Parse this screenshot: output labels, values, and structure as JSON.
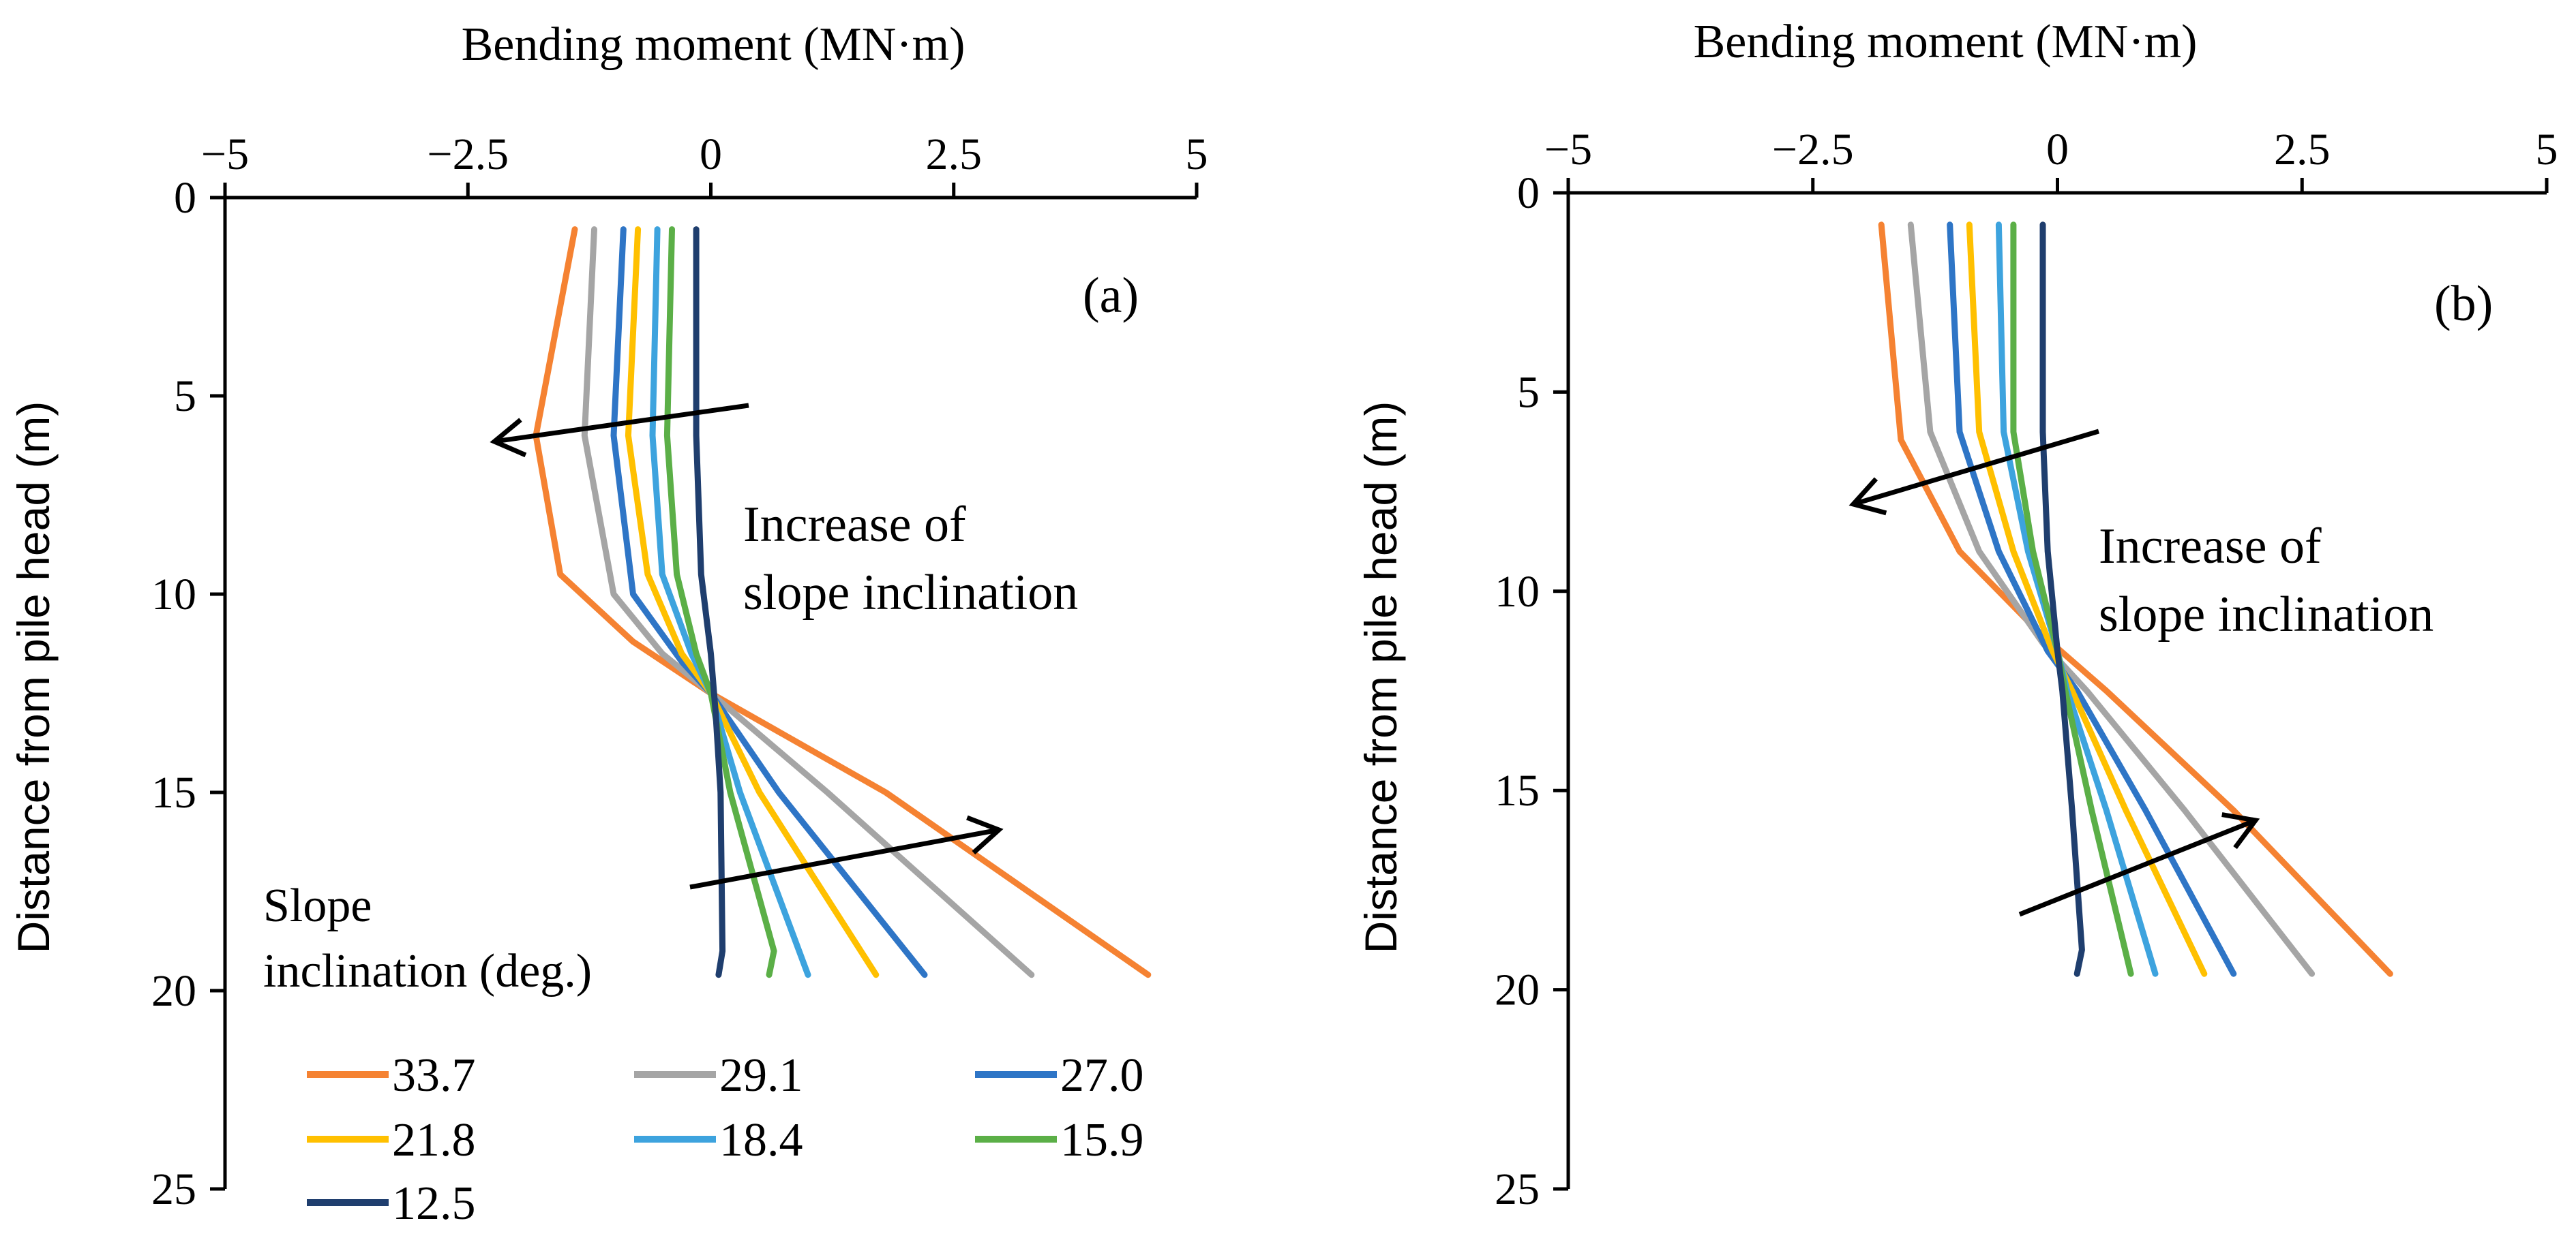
{
  "chart_data": [
    {
      "type": "line",
      "panel_label": "(a)",
      "title": "Bending moment (MN·m)",
      "xlabel": "Bending moment (MN·m)",
      "ylabel": "Distance from pile head (m)",
      "xlim": [
        -5,
        5
      ],
      "ylim": [
        0,
        25
      ],
      "y_inverted": true,
      "x_ticks": [
        "−5",
        "−2.5",
        "0",
        "2.5",
        "5"
      ],
      "x_tick_values": [
        -5,
        -2.5,
        0,
        2.5,
        5
      ],
      "y_ticks": [
        "0",
        "5",
        "10",
        "15",
        "20",
        "25"
      ],
      "y_tick_values": [
        0,
        5,
        10,
        15,
        20,
        25
      ],
      "annotation": "Increase of slope inclination",
      "legend_title": "Slope inclination (deg.)",
      "series": [
        {
          "name": "33.7",
          "color": "#F58232",
          "points": [
            [
              -1.4,
              0.8
            ],
            [
              -1.8,
              6.0
            ],
            [
              -1.55,
              9.5
            ],
            [
              -0.8,
              11.2
            ],
            [
              0,
              12.5
            ],
            [
              1.8,
              15.0
            ],
            [
              4.5,
              19.6
            ]
          ]
        },
        {
          "name": "29.1",
          "color": "#A5A5A5",
          "points": [
            [
              -1.2,
              0.8
            ],
            [
              -1.3,
              6.0
            ],
            [
              -1.0,
              10.0
            ],
            [
              -0.5,
              11.5
            ],
            [
              0,
              12.5
            ],
            [
              1.2,
              15.0
            ],
            [
              3.3,
              19.6
            ]
          ]
        },
        {
          "name": "27.0",
          "color": "#2E75C6",
          "points": [
            [
              -0.9,
              0.8
            ],
            [
              -1.0,
              6.0
            ],
            [
              -0.8,
              10.0
            ],
            [
              -0.3,
              11.7
            ],
            [
              0,
              12.5
            ],
            [
              0.7,
              15.0
            ],
            [
              2.2,
              19.6
            ]
          ]
        },
        {
          "name": "21.8",
          "color": "#FFC000",
          "points": [
            [
              -0.75,
              0.8
            ],
            [
              -0.85,
              6.0
            ],
            [
              -0.65,
              9.5
            ],
            [
              -0.3,
              11.5
            ],
            [
              0,
              12.5
            ],
            [
              0.5,
              15.0
            ],
            [
              1.7,
              19.6
            ]
          ]
        },
        {
          "name": "18.4",
          "color": "#3DA3DE",
          "points": [
            [
              -0.55,
              0.8
            ],
            [
              -0.6,
              6.0
            ],
            [
              -0.5,
              9.5
            ],
            [
              -0.2,
              11.5
            ],
            [
              0,
              12.5
            ],
            [
              0.3,
              15.0
            ],
            [
              1.0,
              19.6
            ]
          ]
        },
        {
          "name": "15.9",
          "color": "#5BAF47",
          "points": [
            [
              -0.4,
              0.8
            ],
            [
              -0.45,
              6.0
            ],
            [
              -0.35,
              9.5
            ],
            [
              -0.15,
              11.5
            ],
            [
              0,
              12.5
            ],
            [
              0.2,
              15.0
            ],
            [
              0.65,
              19.0
            ],
            [
              0.6,
              19.6
            ]
          ]
        },
        {
          "name": "12.5",
          "color": "#1F3E6E",
          "points": [
            [
              -0.15,
              0.8
            ],
            [
              -0.15,
              6.0
            ],
            [
              -0.1,
              9.5
            ],
            [
              0,
              11.5
            ],
            [
              0.05,
              13.0
            ],
            [
              0.1,
              15.0
            ],
            [
              0.12,
              19.0
            ],
            [
              0.08,
              19.6
            ]
          ]
        }
      ]
    },
    {
      "type": "line",
      "panel_label": "(b)",
      "title": "Bending moment (MN·m)",
      "xlabel": "Bending moment (MN·m)",
      "ylabel": "Distance from pile head (m)",
      "xlim": [
        -5,
        5
      ],
      "ylim": [
        0,
        25
      ],
      "y_inverted": true,
      "x_ticks": [
        "−5",
        "−2.5",
        "0",
        "2.5",
        "5"
      ],
      "x_tick_values": [
        -5,
        -2.5,
        0,
        2.5,
        5
      ],
      "y_ticks": [
        "0",
        "5",
        "10",
        "15",
        "20",
        "25"
      ],
      "y_tick_values": [
        0,
        5,
        10,
        15,
        20,
        25
      ],
      "annotation": "Increase of slope inclination",
      "series": [
        {
          "name": "33.7",
          "color": "#F58232",
          "points": [
            [
              -1.8,
              0.8
            ],
            [
              -1.6,
              6.2
            ],
            [
              -1.0,
              9.0
            ],
            [
              -0.2,
              11.0
            ],
            [
              0.5,
              12.5
            ],
            [
              1.8,
              15.5
            ],
            [
              3.4,
              19.6
            ]
          ]
        },
        {
          "name": "29.1",
          "color": "#A5A5A5",
          "points": [
            [
              -1.5,
              0.8
            ],
            [
              -1.3,
              6.0
            ],
            [
              -0.8,
              9.0
            ],
            [
              -0.15,
              11.3
            ],
            [
              0.3,
              12.5
            ],
            [
              1.3,
              15.5
            ],
            [
              2.6,
              19.6
            ]
          ]
        },
        {
          "name": "27.0",
          "color": "#2E75C6",
          "points": [
            [
              -1.1,
              0.8
            ],
            [
              -1.0,
              6.0
            ],
            [
              -0.6,
              9.0
            ],
            [
              -0.1,
              11.5
            ],
            [
              0.2,
              12.5
            ],
            [
              0.9,
              15.5
            ],
            [
              1.8,
              19.6
            ]
          ]
        },
        {
          "name": "21.8",
          "color": "#FFC000",
          "points": [
            [
              -0.9,
              0.8
            ],
            [
              -0.8,
              6.0
            ],
            [
              -0.45,
              9.0
            ],
            [
              -0.05,
              11.5
            ],
            [
              0.15,
              12.5
            ],
            [
              0.7,
              15.5
            ],
            [
              1.5,
              19.6
            ]
          ]
        },
        {
          "name": "18.4",
          "color": "#3DA3DE",
          "points": [
            [
              -0.6,
              0.8
            ],
            [
              -0.55,
              6.0
            ],
            [
              -0.3,
              9.0
            ],
            [
              0,
              11.5
            ],
            [
              0.1,
              12.5
            ],
            [
              0.5,
              15.5
            ],
            [
              1.0,
              19.6
            ]
          ]
        },
        {
          "name": "15.9",
          "color": "#5BAF47",
          "points": [
            [
              -0.45,
              0.8
            ],
            [
              -0.45,
              6.0
            ],
            [
              -0.25,
              9.0
            ],
            [
              0,
              11.5
            ],
            [
              0.08,
              12.5
            ],
            [
              0.35,
              15.5
            ],
            [
              0.75,
              19.6
            ]
          ]
        },
        {
          "name": "12.5",
          "color": "#1F3E6E",
          "points": [
            [
              -0.15,
              0.8
            ],
            [
              -0.15,
              6.0
            ],
            [
              -0.1,
              9.0
            ],
            [
              0,
              11.5
            ],
            [
              0.05,
              12.5
            ],
            [
              0.15,
              15.5
            ],
            [
              0.25,
              19.0
            ],
            [
              0.2,
              19.6
            ]
          ]
        }
      ]
    }
  ]
}
